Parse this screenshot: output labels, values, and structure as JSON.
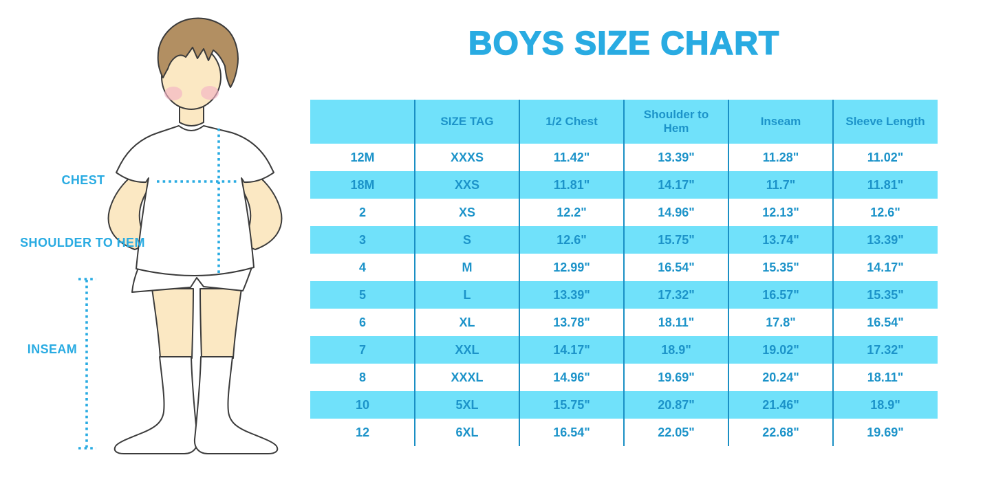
{
  "title": "BOYS SIZE CHART",
  "figure": {
    "labels": {
      "chest": "CHEST",
      "shoulder_to_hem": "SHOULDER TO HEM",
      "inseam": "INSEAM"
    }
  },
  "colors": {
    "accent": "#29ABE2",
    "table_text": "#1C93C9",
    "stripe": "#70E1FA",
    "divider": "#1A8FC4",
    "skin": "#FBE8C3",
    "hair": "#B28F62",
    "cheek": "#F3B3C5",
    "outline": "#3B3B3B"
  },
  "chart_data": {
    "type": "table",
    "title": "BOYS SIZE CHART",
    "columns": [
      "",
      "SIZE TAG",
      "1/2 Chest",
      "Shoulder to Hem",
      "Inseam",
      "Sleeve Length"
    ],
    "rows": [
      [
        "12M",
        "XXXS",
        "11.42\"",
        "13.39\"",
        "11.28\"",
        "11.02\""
      ],
      [
        "18M",
        "XXS",
        "11.81\"",
        "14.17\"",
        "11.7\"",
        "11.81\""
      ],
      [
        "2",
        "XS",
        "12.2\"",
        "14.96\"",
        "12.13\"",
        "12.6\""
      ],
      [
        "3",
        "S",
        "12.6\"",
        "15.75\"",
        "13.74\"",
        "13.39\""
      ],
      [
        "4",
        "M",
        "12.99\"",
        "16.54\"",
        "15.35\"",
        "14.17\""
      ],
      [
        "5",
        "L",
        "13.39\"",
        "17.32\"",
        "16.57\"",
        "15.35\""
      ],
      [
        "6",
        "XL",
        "13.78\"",
        "18.11\"",
        "17.8\"",
        "16.54\""
      ],
      [
        "7",
        "XXL",
        "14.17\"",
        "18.9\"",
        "19.02\"",
        "17.32\""
      ],
      [
        "8",
        "XXXL",
        "14.96\"",
        "19.69\"",
        "20.24\"",
        "18.11\""
      ],
      [
        "10",
        "5XL",
        "15.75\"",
        "20.87\"",
        "21.46\"",
        "18.9\""
      ],
      [
        "12",
        "6XL",
        "16.54\"",
        "22.05\"",
        "22.68\"",
        "19.69\""
      ]
    ],
    "striped_rows": true,
    "stripe_pattern": "header cyan, data rows alternate white/cyan starting white"
  }
}
